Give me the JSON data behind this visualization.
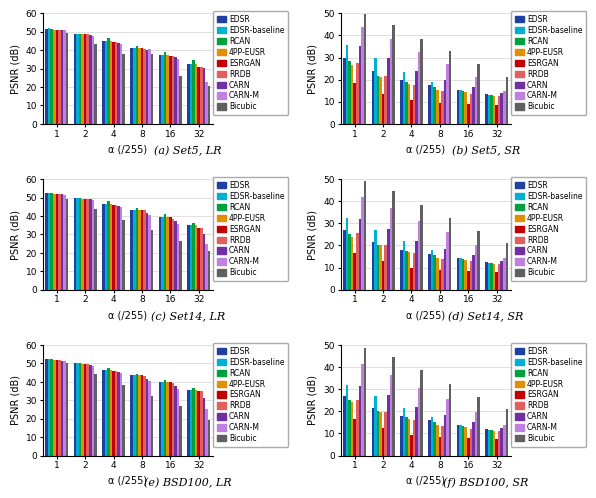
{
  "alpha_labels": [
    "1",
    "2",
    "4",
    "8",
    "16",
    "32"
  ],
  "models": [
    "EDSR",
    "EDSR-baseline",
    "RCAN",
    "4PP-EUSR",
    "ESRGAN",
    "RRDB",
    "CARN",
    "CARN-M",
    "Bicubic"
  ],
  "colors": [
    "#2040a0",
    "#00b0d0",
    "#00a040",
    "#e09000",
    "#c00000",
    "#e06060",
    "#7030a0",
    "#c080e0",
    "#606060"
  ],
  "subplots": [
    {
      "title": "(a) Set5, LR",
      "ylabel": "PSNR (dB)",
      "xlabel": "α (/255)",
      "ylim": [
        0,
        60
      ],
      "yticks": [
        0,
        10,
        20,
        30,
        40,
        50,
        60
      ],
      "data": [
        [
          51.5,
          52.0,
          51.5,
          51.0,
          51.0,
          51.0,
          51.0,
          51.0,
          49.5
        ],
        [
          49.0,
          49.0,
          49.0,
          48.5,
          48.5,
          48.5,
          48.0,
          47.5,
          43.5
        ],
        [
          45.0,
          45.0,
          46.5,
          45.0,
          44.5,
          44.5,
          44.0,
          43.5,
          38.0
        ],
        [
          41.0,
          41.0,
          42.5,
          41.0,
          41.0,
          40.5,
          40.0,
          40.5,
          38.0
        ],
        [
          37.5,
          37.5,
          39.0,
          37.5,
          37.0,
          37.0,
          36.5,
          35.0,
          26.0
        ],
        [
          32.5,
          32.5,
          34.5,
          32.5,
          31.0,
          31.0,
          30.5,
          22.5,
          20.5
        ]
      ]
    },
    {
      "title": "(b) Set5, SR",
      "ylabel": "PSNR (dB)",
      "xlabel": "α (/255)",
      "ylim": [
        0,
        50
      ],
      "yticks": [
        0,
        10,
        20,
        30,
        40,
        50
      ],
      "data": [
        [
          30.0,
          35.5,
          28.5,
          26.5,
          18.5,
          27.5,
          35.0,
          44.0,
          49.5
        ],
        [
          24.0,
          30.0,
          21.5,
          21.0,
          13.5,
          21.5,
          30.0,
          38.5,
          44.5
        ],
        [
          20.0,
          23.5,
          19.0,
          18.0,
          11.0,
          17.5,
          24.0,
          32.5,
          38.5
        ],
        [
          17.5,
          19.0,
          16.5,
          15.5,
          9.5,
          15.0,
          20.0,
          27.0,
          33.0
        ],
        [
          15.5,
          15.5,
          15.0,
          14.5,
          9.0,
          13.5,
          16.5,
          21.0,
          27.0
        ],
        [
          13.5,
          13.0,
          13.0,
          12.5,
          8.5,
          12.5,
          14.0,
          15.0,
          21.0
        ]
      ]
    },
    {
      "title": "(c) Set14, LR",
      "ylabel": "PSNR (dB)",
      "xlabel": "α (/255)",
      "ylim": [
        0,
        60
      ],
      "yticks": [
        0,
        10,
        20,
        30,
        40,
        50,
        60
      ],
      "data": [
        [
          52.5,
          52.5,
          52.5,
          52.0,
          52.0,
          52.0,
          52.0,
          51.5,
          49.5
        ],
        [
          50.0,
          50.0,
          50.0,
          49.5,
          49.5,
          49.0,
          49.0,
          48.5,
          44.0
        ],
        [
          46.5,
          46.5,
          48.0,
          46.5,
          46.0,
          46.0,
          45.5,
          45.0,
          38.0
        ],
        [
          43.5,
          43.5,
          44.5,
          43.5,
          43.0,
          43.0,
          41.5,
          40.5,
          32.5
        ],
        [
          39.5,
          39.5,
          41.0,
          39.5,
          39.5,
          38.5,
          37.5,
          35.5,
          26.5
        ],
        [
          35.0,
          35.0,
          36.0,
          35.0,
          33.5,
          33.5,
          30.0,
          25.0,
          21.0
        ]
      ]
    },
    {
      "title": "(d) Set14, SR",
      "ylabel": "PSNR (dB)",
      "xlabel": "α (/255)",
      "ylim": [
        0,
        50
      ],
      "yticks": [
        0,
        10,
        20,
        30,
        40,
        50
      ],
      "data": [
        [
          27.0,
          32.5,
          25.0,
          24.0,
          16.5,
          25.5,
          32.0,
          42.0,
          49.0
        ],
        [
          21.5,
          27.0,
          20.0,
          20.0,
          13.0,
          20.0,
          27.5,
          37.0,
          44.5
        ],
        [
          18.0,
          22.0,
          17.5,
          17.0,
          10.0,
          16.5,
          22.0,
          31.0,
          38.5
        ],
        [
          16.0,
          18.0,
          15.5,
          14.5,
          9.0,
          14.0,
          18.5,
          26.0,
          32.5
        ],
        [
          14.5,
          14.5,
          14.0,
          13.5,
          8.5,
          13.0,
          15.5,
          20.0,
          26.5
        ],
        [
          12.5,
          12.0,
          12.0,
          11.5,
          8.0,
          11.5,
          13.0,
          14.5,
          21.0
        ]
      ]
    },
    {
      "title": "(e) BSD100, LR",
      "ylabel": "PSNR (dB)",
      "xlabel": "α (/255)",
      "ylim": [
        0,
        60
      ],
      "yticks": [
        0,
        10,
        20,
        30,
        40,
        50,
        60
      ],
      "data": [
        [
          52.5,
          52.5,
          52.5,
          52.0,
          52.0,
          52.0,
          51.5,
          51.5,
          50.0
        ],
        [
          50.0,
          50.0,
          50.0,
          49.5,
          49.5,
          49.5,
          49.0,
          48.5,
          44.0
        ],
        [
          46.5,
          46.5,
          47.5,
          46.5,
          46.0,
          46.0,
          45.5,
          45.0,
          38.5
        ],
        [
          43.5,
          43.5,
          44.5,
          43.5,
          43.5,
          43.0,
          41.5,
          40.5,
          32.5
        ],
        [
          40.0,
          40.0,
          41.0,
          40.0,
          40.0,
          39.5,
          37.5,
          36.0,
          27.0
        ],
        [
          35.5,
          35.5,
          36.5,
          35.5,
          35.0,
          35.0,
          31.5,
          25.5,
          19.5
        ]
      ]
    },
    {
      "title": "(f) BSD100, SR",
      "ylabel": "PSNR (dB)",
      "xlabel": "α (/255)",
      "ylim": [
        0,
        50
      ],
      "yticks": [
        0,
        10,
        20,
        30,
        40,
        50
      ],
      "data": [
        [
          27.0,
          32.0,
          25.0,
          24.0,
          16.5,
          25.0,
          31.5,
          41.5,
          48.5
        ],
        [
          21.5,
          27.0,
          20.0,
          19.5,
          12.5,
          19.5,
          27.5,
          36.5,
          44.5
        ],
        [
          18.0,
          21.5,
          17.5,
          16.5,
          9.5,
          16.0,
          22.0,
          30.5,
          38.5
        ],
        [
          16.0,
          17.5,
          15.0,
          14.0,
          8.5,
          13.5,
          18.5,
          25.5,
          32.5
        ],
        [
          14.0,
          14.0,
          13.5,
          13.0,
          8.0,
          12.0,
          15.0,
          19.5,
          26.5
        ],
        [
          12.0,
          11.5,
          11.5,
          11.0,
          7.5,
          11.0,
          12.5,
          14.0,
          21.0
        ]
      ]
    }
  ],
  "legend_labels": [
    "EDSR",
    "EDSR-baseline",
    "RCAN",
    "4PP-EUSR",
    "ESRGAN",
    "RRDB",
    "CARN",
    "CARN-M",
    "Bicubic"
  ]
}
